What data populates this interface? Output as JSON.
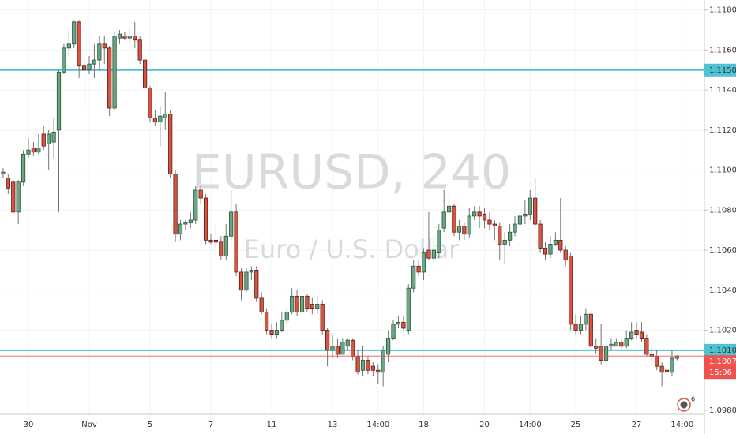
{
  "chart_data": {
    "type": "candlestick",
    "title": "EURUSD, 240",
    "subtitle": "Euro / U.S. Dollar",
    "categories": [
      null,
      null,
      null,
      null,
      null,
      "30",
      null,
      null,
      null,
      null,
      null,
      null,
      null,
      null,
      null,
      null,
      null,
      "Nov",
      null,
      null,
      null,
      null,
      null,
      null,
      null,
      null,
      null,
      null,
      null,
      "5",
      null,
      null,
      null,
      null,
      null,
      null,
      null,
      null,
      null,
      null,
      null,
      "7",
      null,
      null,
      null,
      null,
      null,
      null,
      null,
      null,
      null,
      null,
      null,
      "11",
      null,
      null,
      null,
      null,
      null,
      null,
      null,
      null,
      null,
      null,
      null,
      "13",
      null,
      null,
      null,
      null,
      null,
      null,
      null,
      null,
      "14:00",
      null,
      null,
      null,
      null,
      null,
      null,
      null,
      null,
      "18",
      null,
      null,
      null,
      null,
      null,
      null,
      null,
      null,
      null,
      null,
      null,
      "20",
      null,
      null,
      null,
      null,
      null,
      null,
      null,
      null,
      "14:00",
      null,
      null,
      null,
      null,
      null,
      null,
      null,
      null,
      "25",
      null,
      null,
      null,
      null,
      null,
      null,
      null,
      null,
      null,
      null,
      null,
      "27",
      null,
      null,
      null,
      null,
      null,
      null,
      null,
      null,
      "14:00"
    ],
    "open": [
      1.1098,
      1.1096,
      1.1094,
      1.1079,
      1.1094,
      1.1108,
      1.1111,
      1.1109,
      1.1118,
      1.1113,
      1.1114,
      1.112,
      1.1149,
      1.1161,
      1.1163,
      1.1174,
      1.1152,
      1.115,
      1.1153,
      1.1155,
      1.1163,
      1.1161,
      1.1131,
      1.1166,
      1.1167,
      1.1166,
      1.1167,
      1.1165,
      1.1155,
      1.1141,
      1.1126,
      1.1124,
      1.1126,
      1.1128,
      1.1098,
      1.1068,
      1.1073,
      1.1074,
      1.1075,
      1.109,
      1.1086,
      1.1065,
      1.1065,
      1.1064,
      1.1057,
      1.1067,
      1.1079,
      1.1049,
      1.104,
      1.1049,
      1.105,
      1.1036,
      1.1029,
      1.102,
      1.1018,
      1.102,
      1.1025,
      1.1029,
      1.1037,
      1.1029,
      1.1037,
      1.1033,
      1.1031,
      1.1033,
      1.102,
      1.101,
      1.1012,
      1.1008,
      1.1012,
      1.1015,
      1.1007,
      1.1,
      1.1005,
      1.1002,
      1.1,
      1.0999,
      1.1008,
      1.1016,
      1.1023,
      1.1024,
      1.102,
      1.1041,
      1.1052,
      1.1049,
      1.106,
      1.1056,
      1.1059,
      1.1071,
      1.1079,
      1.1082,
      1.1069,
      1.1072,
      1.1068,
      1.1077,
      1.1079,
      1.1078,
      1.1075,
      1.1073,
      1.1072,
      1.1063,
      1.1065,
      1.1069,
      1.1073,
      1.1077,
      1.1078,
      1.1086,
      1.1073,
      1.1061,
      1.1058,
      1.1063,
      1.1065,
      1.106,
      1.1057,
      1.1023,
      1.102,
      1.1023,
      1.1028,
      1.1012,
      1.1012,
      1.1005,
      1.1012,
      1.1012,
      1.1014,
      1.1012,
      1.1016,
      1.102,
      1.1019,
      1.1016,
      1.1008,
      1.1007,
      1.1002,
      1.1,
      1.0999,
      1.1006,
      null
    ],
    "high": [
      1.1101,
      1.1098,
      1.1095,
      1.1095,
      1.111,
      1.1116,
      1.1114,
      1.1118,
      1.1122,
      1.112,
      1.1126,
      1.115,
      1.1163,
      1.1169,
      1.1175,
      1.1175,
      1.1155,
      1.1157,
      1.1163,
      1.1167,
      1.1167,
      1.1162,
      1.1169,
      1.117,
      1.1169,
      1.1171,
      1.1174,
      1.1167,
      1.1157,
      1.1142,
      1.113,
      1.1132,
      1.1139,
      1.113,
      1.11,
      1.1075,
      1.1075,
      1.1079,
      1.1092,
      1.1092,
      1.1088,
      1.1068,
      1.1073,
      1.1067,
      1.1073,
      1.109,
      1.1083,
      1.1051,
      1.1051,
      1.1052,
      1.1052,
      1.1039,
      1.1031,
      1.1023,
      1.1024,
      1.1029,
      1.1031,
      1.1041,
      1.104,
      1.1039,
      1.1038,
      1.1036,
      1.1037,
      1.1035,
      1.1021,
      1.1018,
      1.1016,
      1.1016,
      1.1016,
      1.1016,
      1.101,
      1.1012,
      1.1007,
      1.1004,
      1.1003,
      1.1012,
      1.102,
      1.1025,
      1.1027,
      1.1027,
      1.1043,
      1.1055,
      1.1055,
      1.1061,
      1.1079,
      1.1067,
      1.1073,
      1.109,
      1.1088,
      1.1083,
      1.1075,
      1.1074,
      1.1081,
      1.1082,
      1.1082,
      1.1081,
      1.1079,
      1.1075,
      1.1074,
      1.1069,
      1.1073,
      1.1077,
      1.1079,
      1.1085,
      1.109,
      1.1096,
      1.1075,
      1.1064,
      1.1067,
      1.1069,
      1.1086,
      1.1062,
      1.1059,
      1.1028,
      1.1027,
      1.1031,
      1.1029,
      1.1016,
      1.1023,
      1.1018,
      1.1016,
      1.1016,
      1.1016,
      1.102,
      1.1024,
      1.1024,
      1.1024,
      1.1018,
      1.1012,
      1.101,
      1.1004,
      1.1003,
      1.101,
      1.10075,
      null
    ],
    "low": [
      1.1096,
      1.1088,
      1.1078,
      1.1073,
      1.1092,
      1.1106,
      1.1107,
      1.1108,
      1.111,
      1.11,
      1.1106,
      1.1079,
      1.1148,
      1.1157,
      1.1161,
      1.1146,
      1.1132,
      1.1148,
      1.1146,
      1.115,
      1.1153,
      1.1127,
      1.113,
      1.1163,
      1.1165,
      1.1163,
      1.1161,
      1.1153,
      1.114,
      1.1124,
      1.1122,
      1.1112,
      1.112,
      1.1096,
      1.1064,
      1.1065,
      1.107,
      1.1071,
      1.1073,
      1.1083,
      1.1063,
      1.1063,
      1.106,
      1.1055,
      1.1055,
      1.1065,
      1.1047,
      1.1035,
      1.1039,
      1.1045,
      1.1034,
      1.1028,
      1.1018,
      1.1016,
      1.1016,
      1.1019,
      1.1023,
      1.1028,
      1.1027,
      1.1027,
      1.1029,
      1.1028,
      1.1028,
      1.1018,
      1.1002,
      1.1006,
      1.1006,
      1.1008,
      1.101,
      1.1005,
      1.0998,
      1.0997,
      1.0998,
      1.0997,
      1.0993,
      1.0992,
      1.1004,
      1.1015,
      1.1021,
      1.102,
      1.1018,
      1.1039,
      1.1047,
      1.1045,
      1.1055,
      1.1054,
      1.1056,
      1.1069,
      1.1078,
      1.1067,
      1.1065,
      1.1065,
      1.1066,
      1.1075,
      1.1071,
      1.1071,
      1.107,
      1.1065,
      1.1055,
      1.1053,
      1.1062,
      1.1067,
      1.1071,
      1.1073,
      1.1075,
      1.1071,
      1.1059,
      1.1055,
      1.1056,
      1.1062,
      1.1059,
      1.1052,
      1.102,
      1.1018,
      1.1018,
      1.102,
      1.1011,
      1.1008,
      1.1003,
      1.1004,
      1.101,
      1.1012,
      1.1011,
      1.1011,
      1.1015,
      1.1016,
      1.1014,
      1.1007,
      1.1005,
      1.1,
      1.0992,
      1.0997,
      1.0997,
      1.1005,
      null
    ],
    "close": [
      1.1099,
      1.1091,
      1.1079,
      1.1094,
      1.1108,
      1.111,
      1.1109,
      1.1111,
      1.1112,
      1.1118,
      1.1119,
      1.1149,
      1.1161,
      1.1163,
      1.1174,
      1.1152,
      1.115,
      1.1153,
      1.1155,
      1.1163,
      1.1161,
      1.1131,
      1.1167,
      1.1168,
      1.1166,
      1.1167,
      1.1165,
      1.1155,
      1.1141,
      1.1126,
      1.1124,
      1.1127,
      1.1128,
      1.1098,
      1.1068,
      1.1073,
      1.1074,
      1.1075,
      1.109,
      1.1086,
      1.1065,
      1.1064,
      1.1064,
      1.1057,
      1.1067,
      1.1079,
      1.1049,
      1.104,
      1.1049,
      1.105,
      1.1036,
      1.1029,
      1.102,
      1.1018,
      1.102,
      1.1025,
      1.1029,
      1.1037,
      1.1029,
      1.1037,
      1.1031,
      1.1031,
      1.1033,
      1.102,
      1.101,
      1.1012,
      1.1008,
      1.1014,
      1.1015,
      1.1007,
      1.0999,
      1.1005,
      1.1,
      1.1,
      1.0999,
      1.101,
      1.1016,
      1.1023,
      1.1024,
      1.1021,
      1.1041,
      1.1052,
      1.1049,
      1.1059,
      1.1056,
      1.106,
      1.107,
      1.1079,
      1.1082,
      1.1069,
      1.1072,
      1.1068,
      1.1077,
      1.1079,
      1.1077,
      1.1075,
      1.1073,
      1.1072,
      1.1063,
      1.1065,
      1.1069,
      1.1073,
      1.1077,
      1.1078,
      1.1086,
      1.1073,
      1.1061,
      1.1058,
      1.1063,
      1.1065,
      1.106,
      1.1055,
      1.1023,
      1.102,
      1.1023,
      1.1028,
      1.1012,
      1.1011,
      1.1005,
      1.1012,
      1.1013,
      1.1014,
      1.1012,
      1.1016,
      1.1019,
      1.1018,
      1.1016,
      1.1008,
      1.1007,
      1.1002,
      1.0999,
      1.0999,
      1.1006,
      1.10071,
      null
    ],
    "up_color": "#6ba583",
    "down_color": "#d75442",
    "up_border": "#225437",
    "down_border": "#5b1a13",
    "wick_color": "#737375",
    "ylim": [
      1.0978,
      1.1185
    ],
    "yticks": [
      {
        "value": 1.118,
        "label": "1.11800"
      },
      {
        "value": 1.116,
        "label": "1.11600"
      },
      {
        "value": 1.114,
        "label": "1.11400"
      },
      {
        "value": 1.112,
        "label": "1.11200"
      },
      {
        "value": 1.11,
        "label": "1.11000"
      },
      {
        "value": 1.108,
        "label": "1.10800"
      },
      {
        "value": 1.106,
        "label": "1.10600"
      },
      {
        "value": 1.104,
        "label": "1.10400"
      },
      {
        "value": 1.102,
        "label": "1.10200"
      },
      {
        "value": 1.098,
        "label": "1.09800"
      }
    ],
    "grid": true,
    "levels": [
      {
        "value": 1.115,
        "label": "1.11500"
      },
      {
        "value": 1.101,
        "label": "1.10100"
      }
    ],
    "level_color": "#4ec3d2",
    "last_price_color": "#ef5350",
    "countdown": "15:06",
    "badge": "6"
  }
}
